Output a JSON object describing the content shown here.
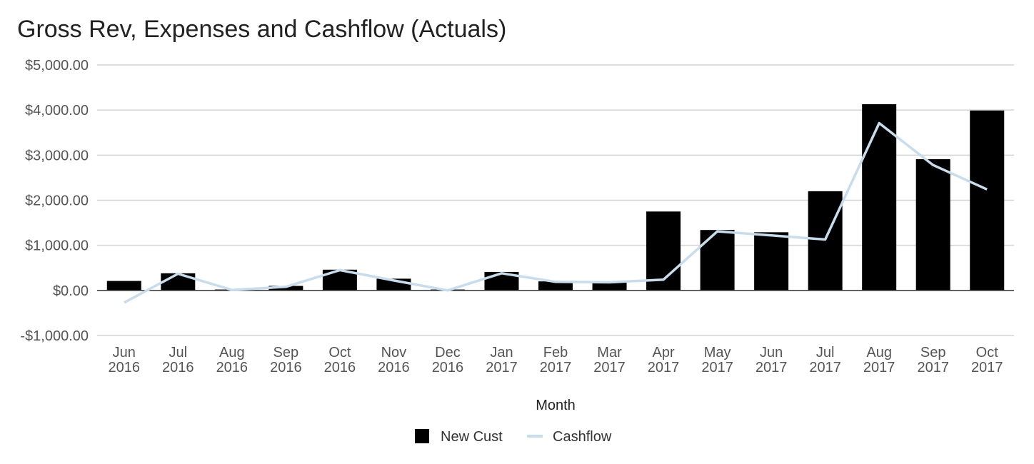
{
  "chart_data": {
    "type": "bar",
    "title": "Gross Rev, Expenses and Cashflow (Actuals)",
    "xlabel": "Month",
    "ylabel": "",
    "ylim": [
      -1000,
      5000
    ],
    "yticks": [
      5000,
      4000,
      3000,
      2000,
      1000,
      0,
      -1000
    ],
    "ytick_labels": [
      "$5,000.00",
      "$4,000.00",
      "$3,000.00",
      "$2,000.00",
      "$1,000.00",
      "$0.00",
      "-$1,000.00"
    ],
    "categories": [
      [
        "Jun",
        "2016"
      ],
      [
        "Jul",
        "2016"
      ],
      [
        "Aug",
        "2016"
      ],
      [
        "Sep",
        "2016"
      ],
      [
        "Oct",
        "2016"
      ],
      [
        "Nov",
        "2016"
      ],
      [
        "Dec",
        "2016"
      ],
      [
        "Jan",
        "2017"
      ],
      [
        "Feb",
        "2017"
      ],
      [
        "Mar",
        "2017"
      ],
      [
        "Apr",
        "2017"
      ],
      [
        "May",
        "2017"
      ],
      [
        "Jun",
        "2017"
      ],
      [
        "Jul",
        "2017"
      ],
      [
        "Aug",
        "2017"
      ],
      [
        "Sep",
        "2017"
      ],
      [
        "Oct",
        "2017"
      ]
    ],
    "grid": true,
    "legend_position": "bottom",
    "series": [
      {
        "name": "New Cust",
        "type": "bar",
        "color": "#000000",
        "values": [
          210,
          380,
          20,
          100,
          460,
          260,
          20,
          410,
          200,
          200,
          1750,
          1340,
          1290,
          2200,
          4130,
          2910,
          3990
        ]
      },
      {
        "name": "Cashflow",
        "type": "line",
        "color": "#c9dcec",
        "values": [
          -270,
          370,
          10,
          80,
          450,
          220,
          0,
          380,
          190,
          180,
          240,
          1310,
          1220,
          1130,
          3710,
          2780,
          2240
        ]
      }
    ]
  }
}
